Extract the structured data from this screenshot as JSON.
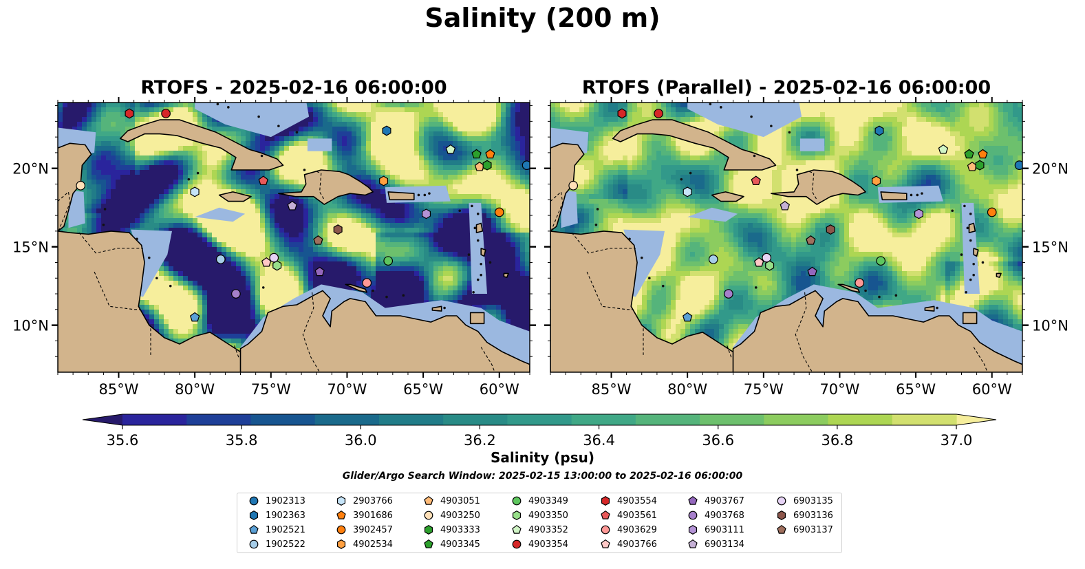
{
  "title": "Salinity (200 m)",
  "panels": [
    {
      "title": "RTOFS - 2025-02-16 06:00:00"
    },
    {
      "title": "RTOFS (Parallel) - 2025-02-16 06:00:00"
    }
  ],
  "map": {
    "lon_range": [
      -89,
      -58
    ],
    "lat_range": [
      7,
      24.2
    ],
    "lon_ticks": [
      {
        "value": -85,
        "label": "85°W"
      },
      {
        "value": -80,
        "label": "80°W"
      },
      {
        "value": -75,
        "label": "75°W"
      },
      {
        "value": -70,
        "label": "70°W"
      },
      {
        "value": -65,
        "label": "65°W"
      },
      {
        "value": -60,
        "label": "60°W"
      }
    ],
    "lat_ticks": [
      {
        "value": 10,
        "label": "10°N"
      },
      {
        "value": 15,
        "label": "15°N"
      },
      {
        "value": 20,
        "label": "20°N"
      }
    ],
    "colors": {
      "land": "#d2b48c",
      "shelf": "#9bb8e0",
      "coast": "#000000"
    }
  },
  "colorbar": {
    "label": "Salinity (psu)",
    "min": 35.6,
    "max": 37.0,
    "step": 0.1,
    "extend": "both",
    "ticks": [
      35.6,
      35.8,
      36.0,
      36.2,
      36.4,
      36.6,
      36.8,
      37.0
    ],
    "tick_labels": [
      "35.6",
      "35.8",
      "36.0",
      "36.2",
      "36.4",
      "36.6",
      "36.8",
      "37.0"
    ],
    "colors": [
      "#271a6b",
      "#2a249c",
      "#1e3f98",
      "#175590",
      "#1a6a8b",
      "#217c88",
      "#298b86",
      "#32998a",
      "#40a886",
      "#55b47b",
      "#6dc06d",
      "#8ccc5f",
      "#add653",
      "#d2e06f",
      "#f6ee9c"
    ]
  },
  "search_window": "Glider/Argo Search Window: 2025-02-15 13:00:00 to 2025-02-16 06:00:00",
  "floats": [
    {
      "id": "1902313",
      "marker": "circle",
      "color": "#1f77b4",
      "lon": -58.2,
      "lat": 20.2
    },
    {
      "id": "1902363",
      "marker": "hexagon",
      "color": "#1f77b4",
      "lon": -67.4,
      "lat": 22.4
    },
    {
      "id": "1902521",
      "marker": "pentagon",
      "color": "#5aa0d6",
      "lon": -80.0,
      "lat": 10.5
    },
    {
      "id": "1902522",
      "marker": "circle",
      "color": "#a6cde8",
      "lon": -78.3,
      "lat": 14.2
    },
    {
      "id": "2903766",
      "marker": "hexagon",
      "color": "#c6e4f8",
      "lon": -80.0,
      "lat": 18.5
    },
    {
      "id": "3901686",
      "marker": "pentagon",
      "color": "#ff7f0e",
      "lon": -60.6,
      "lat": 20.9
    },
    {
      "id": "3902457",
      "marker": "circle",
      "color": "#ff7f0e",
      "lon": -60.0,
      "lat": 17.2
    },
    {
      "id": "4902534",
      "marker": "hexagon",
      "color": "#ffa040",
      "lon": -67.6,
      "lat": 19.2
    },
    {
      "id": "4903051",
      "marker": "pentagon",
      "color": "#ffbb78",
      "lon": -61.3,
      "lat": 20.1
    },
    {
      "id": "4903250",
      "marker": "circle",
      "color": "#ffe0b8",
      "lon": -87.5,
      "lat": 18.9
    },
    {
      "id": "4903333",
      "marker": "hexagon",
      "color": "#2ca02c",
      "lon": -60.8,
      "lat": 20.2
    },
    {
      "id": "4903345",
      "marker": "pentagon",
      "color": "#2ca02c",
      "lon": -61.5,
      "lat": 20.9
    },
    {
      "id": "4903349",
      "marker": "circle",
      "color": "#5ec75e",
      "lon": -67.3,
      "lat": 14.1
    },
    {
      "id": "4903350",
      "marker": "hexagon",
      "color": "#98df8a",
      "lon": -74.6,
      "lat": 13.8
    },
    {
      "id": "4903352",
      "marker": "pentagon",
      "color": "#d0f5c6",
      "lon": -63.2,
      "lat": 21.2
    },
    {
      "id": "4903354",
      "marker": "circle",
      "color": "#d62728",
      "lon": -81.9,
      "lat": 23.5
    },
    {
      "id": "4903554",
      "marker": "hexagon",
      "color": "#d62728",
      "lon": -84.3,
      "lat": 23.5
    },
    {
      "id": "4903561",
      "marker": "pentagon",
      "color": "#e8595a",
      "lon": -75.5,
      "lat": 19.2
    },
    {
      "id": "4903629",
      "marker": "circle",
      "color": "#ff9896",
      "lon": -68.7,
      "lat": 12.7
    },
    {
      "id": "4903766",
      "marker": "pentagon",
      "color": "#ffc8c6",
      "lon": -75.3,
      "lat": 14.0
    },
    {
      "id": "4903767",
      "marker": "pentagon",
      "color": "#9467bd",
      "lon": -71.8,
      "lat": 13.4
    },
    {
      "id": "4903768",
      "marker": "circle",
      "color": "#a67fcb",
      "lon": -77.3,
      "lat": 12.0
    },
    {
      "id": "6903111",
      "marker": "hexagon",
      "color": "#b493d6",
      "lon": -64.8,
      "lat": 17.1
    },
    {
      "id": "6903134",
      "marker": "pentagon",
      "color": "#c5b0d5",
      "lon": -73.6,
      "lat": 17.6
    },
    {
      "id": "6903135",
      "marker": "circle",
      "color": "#e6d3f5",
      "lon": -74.8,
      "lat": 14.3
    },
    {
      "id": "6903136",
      "marker": "hexagon",
      "color": "#8c564b",
      "lon": -70.6,
      "lat": 16.1
    },
    {
      "id": "6903137",
      "marker": "pentagon",
      "color": "#a0705e",
      "lon": -71.9,
      "lat": 15.4
    }
  ]
}
